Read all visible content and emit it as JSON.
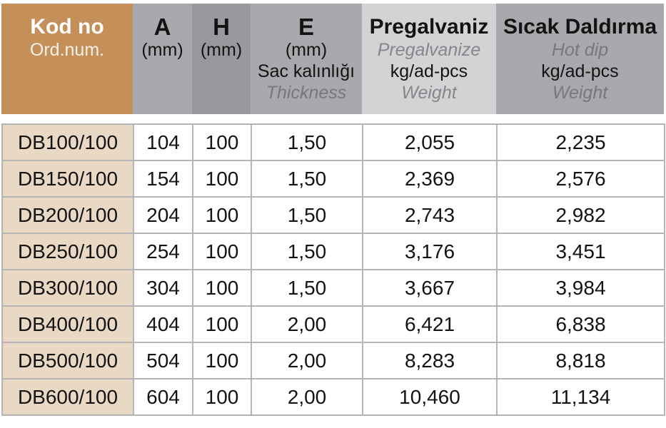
{
  "table": {
    "header": {
      "kod": {
        "title": "Kod no",
        "subtitle": "Ord.num."
      },
      "a": {
        "title": "A",
        "unit": "(mm)"
      },
      "h": {
        "title": "H",
        "unit": "(mm)"
      },
      "e": {
        "title": "E",
        "unit": "(mm)",
        "desc_tr": "Sac kalınlığı",
        "desc_en": "Thickness"
      },
      "pregalvaniz": {
        "title": "Pregalvaniz",
        "subtitle": "Pregalvanize",
        "unit": "kg/ad-pcs",
        "weight": "Weight"
      },
      "sicak": {
        "title": "Sıcak Daldırma",
        "subtitle": "Hot dip",
        "unit": "kg/ad-pcs",
        "weight": "Weight"
      }
    },
    "rows": [
      [
        "DB100/100",
        "104",
        "100",
        "1,50",
        "2,055",
        "2,235"
      ],
      [
        "DB150/100",
        "154",
        "100",
        "1,50",
        "2,369",
        "2,576"
      ],
      [
        "DB200/100",
        "204",
        "100",
        "1,50",
        "2,743",
        "2,982"
      ],
      [
        "DB250/100",
        "254",
        "100",
        "1,50",
        "3,176",
        "3,451"
      ],
      [
        "DB300/100",
        "304",
        "100",
        "1,50",
        "3,667",
        "3,984"
      ],
      [
        "DB400/100",
        "404",
        "100",
        "2,00",
        "6,421",
        "6,838"
      ],
      [
        "DB500/100",
        "504",
        "100",
        "2,00",
        "8,283",
        "8,818"
      ],
      [
        "DB600/100",
        "604",
        "100",
        "2,00",
        "10,460",
        "11,134"
      ]
    ]
  },
  "colors": {
    "header_tan": "#c48f58",
    "row_label_tan": "#e9d8c3",
    "header_gray": "#a7a9ac",
    "header_gray_dark": "#97999d",
    "header_gray_light": "#d2d3d5",
    "grid_border": "#b5b5b5"
  }
}
